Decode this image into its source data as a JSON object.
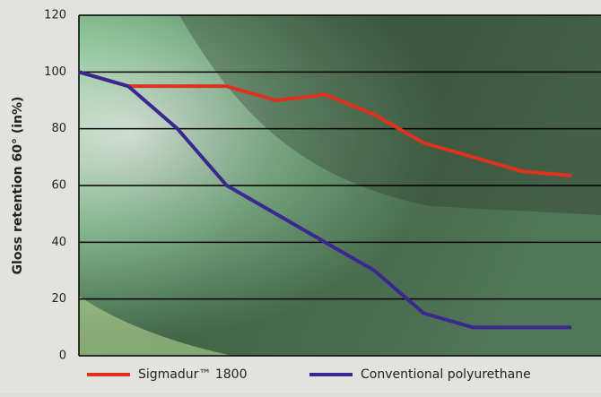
{
  "chart_data": {
    "type": "line",
    "y_label": "Gloss retention 60° (in%)",
    "x": [
      0,
      1,
      2,
      3,
      4,
      5,
      6,
      7,
      8,
      9,
      10
    ],
    "xlim": [
      0,
      10.6
    ],
    "series": [
      {
        "name": "Sigmadur™ 1800",
        "color": "#e0301e",
        "values": [
          100,
          95,
          95,
          95,
          90,
          92,
          85,
          75,
          70,
          65,
          63.5
        ]
      },
      {
        "name": "Conventional polyurethane",
        "color": "#3a2890",
        "values": [
          100,
          95,
          80,
          60,
          50,
          40,
          30,
          15,
          10,
          10,
          10
        ]
      }
    ],
    "ylim": [
      0,
      120
    ],
    "yticks": [
      0,
      20,
      40,
      60,
      80,
      100,
      120
    ],
    "grid": true
  }
}
